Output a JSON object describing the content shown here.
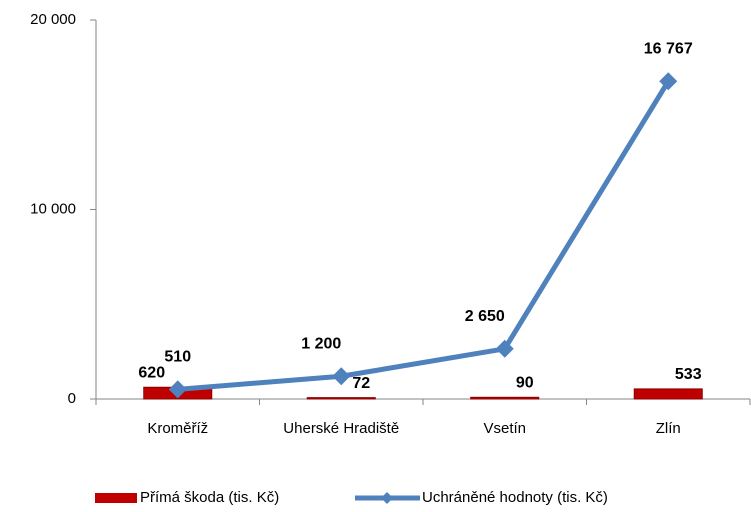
{
  "chart_data": {
    "type": "combo",
    "categories": [
      "Kroměříž",
      "Uherské Hradiště",
      "Vsetín",
      "Zlín"
    ],
    "series": [
      {
        "name": "Přímá škoda (tis. Kč)",
        "type": "bar",
        "color": "#c00000",
        "values": [
          620,
          72,
          90,
          533
        ]
      },
      {
        "name": "Uchráněné hodnoty (tis. Kč)",
        "type": "line",
        "color": "#4f81bd",
        "values": [
          510,
          1200,
          2650,
          16767
        ],
        "value_labels": [
          "510",
          "1 200",
          "2 650",
          "16 767"
        ]
      }
    ],
    "ylim": [
      0,
      20000
    ],
    "yticks": [
      0,
      {
        "value": 10000,
        "label": "10 000"
      },
      {
        "value": 20000,
        "label": "20 000"
      }
    ],
    "grid": false,
    "legend": "bottom"
  }
}
